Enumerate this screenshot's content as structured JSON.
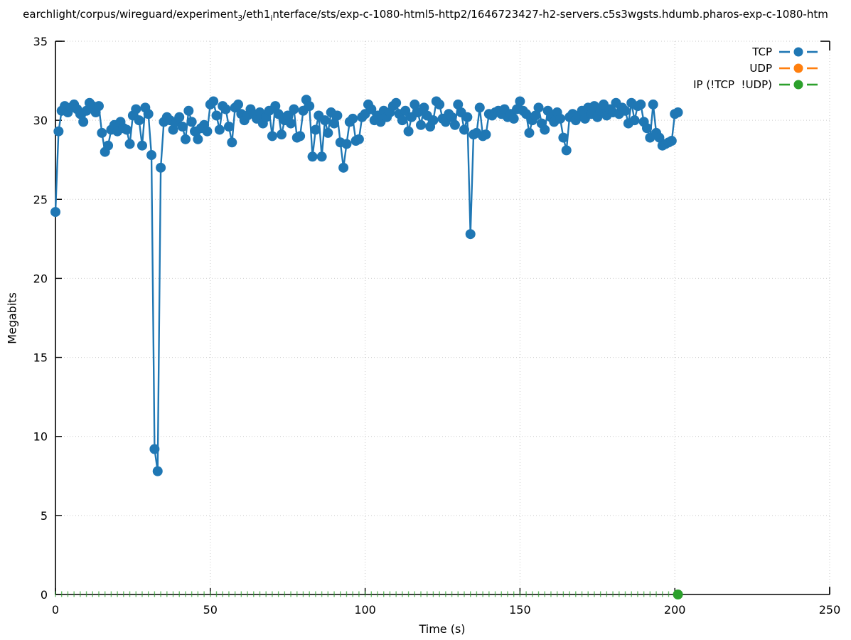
{
  "title": {
    "p1": "earchlight/corpus/wireguard/experiment",
    "sub1": "3",
    "p2": "/eth1",
    "sub2": "i",
    "p3": "nterface/sts/exp-c-1080-html5-http2/1646723427-h2-servers.c5s3wgsts.hdumb.pharos-exp-c-1080-htm"
  },
  "chart_data": {
    "type": "line",
    "title": "earchlight/corpus/wireguard/experiment₃/eth1ᵢnterface/sts/exp-c-1080-html5-http2/1646723427-h2-servers.c5s3wgsts.hdumb.pharos-exp-c-1080-htm",
    "xlabel": "Time (s)",
    "ylabel": "Megabits",
    "xlim": [
      0,
      250
    ],
    "ylim": [
      0,
      35
    ],
    "xticks": [
      0,
      50,
      100,
      150,
      200,
      250
    ],
    "yticks": [
      0,
      5,
      10,
      15,
      20,
      25,
      30,
      35
    ],
    "grid": true,
    "grid_style": "dotted",
    "legend_position": "top-right-inside",
    "colors": {
      "tcp": "#1f77b4",
      "udp": "#ff7f0e",
      "ip": "#2ca02c",
      "grid": "#c9c9c9",
      "border": "#000000"
    },
    "series": [
      {
        "name": "TCP",
        "color": "#1f77b4",
        "style": "linespoints",
        "x_start": 0,
        "x_step": 1,
        "values": [
          24.2,
          29.3,
          30.6,
          30.9,
          30.5,
          30.8,
          31.0,
          30.7,
          30.4,
          29.9,
          30.6,
          31.1,
          30.9,
          30.5,
          30.9,
          29.2,
          28.0,
          28.4,
          29.4,
          29.7,
          29.3,
          29.9,
          29.5,
          29.4,
          28.5,
          30.3,
          30.7,
          30.0,
          28.4,
          30.8,
          30.4,
          27.8,
          9.2,
          7.8,
          27.0,
          29.9,
          30.2,
          30.0,
          29.4,
          29.9,
          30.2,
          29.6,
          28.8,
          30.6,
          29.9,
          29.3,
          28.8,
          29.5,
          29.7,
          29.3,
          31.0,
          31.2,
          30.3,
          29.4,
          30.9,
          30.7,
          29.6,
          28.6,
          30.8,
          31.0,
          30.4,
          30.0,
          30.3,
          30.7,
          30.4,
          30.1,
          30.5,
          29.8,
          30.2,
          30.6,
          29.0,
          30.9,
          30.4,
          29.1,
          30.0,
          30.3,
          29.8,
          30.7,
          28.9,
          29.0,
          30.6,
          31.3,
          30.9,
          27.7,
          29.4,
          30.3,
          27.7,
          30.0,
          29.2,
          30.5,
          29.8,
          30.3,
          28.6,
          27.0,
          28.5,
          29.9,
          30.1,
          28.7,
          28.8,
          30.2,
          30.4,
          31.0,
          30.7,
          30.0,
          30.3,
          29.9,
          30.6,
          30.2,
          30.5,
          30.9,
          31.1,
          30.4,
          30.0,
          30.6,
          29.3,
          30.2,
          31.0,
          30.5,
          29.7,
          30.8,
          30.3,
          29.6,
          30.0,
          31.2,
          31.0,
          30.1,
          29.9,
          30.4,
          30.2,
          29.7,
          31.0,
          30.5,
          29.4,
          30.2,
          22.8,
          29.1,
          29.2,
          30.8,
          29.0,
          29.1,
          30.4,
          30.3,
          30.5,
          30.6,
          30.4,
          30.7,
          30.2,
          30.4,
          30.1,
          30.7,
          31.2,
          30.6,
          30.4,
          29.2,
          30.0,
          30.3,
          30.8,
          29.8,
          29.4,
          30.6,
          30.2,
          29.9,
          30.5,
          30.1,
          28.9,
          28.1,
          30.2,
          30.4,
          30.0,
          30.3,
          30.6,
          30.1,
          30.8,
          30.4,
          30.9,
          30.2,
          30.6,
          31.0,
          30.3,
          30.7,
          30.5,
          31.1,
          30.4,
          30.8,
          30.6,
          29.8,
          31.1,
          30.0,
          30.9,
          31.0,
          29.9,
          29.5,
          28.9,
          31.0,
          29.2,
          28.9,
          28.4,
          28.5,
          28.6,
          28.7,
          30.4,
          30.5
        ]
      },
      {
        "name": "UDP",
        "color": "#ff7f0e",
        "style": "linespoints",
        "points": [],
        "note": "no points visible in plot (overlapped at 0 by IP series); legend entry only"
      },
      {
        "name": "IP (!TCP  !UDP)",
        "color": "#2ca02c",
        "style": "linespoints",
        "points": [
          [
            201,
            0
          ]
        ],
        "baseline_marks": {
          "y": 0,
          "x_start": 0,
          "x_end": 200,
          "x_step": 2
        }
      }
    ]
  }
}
